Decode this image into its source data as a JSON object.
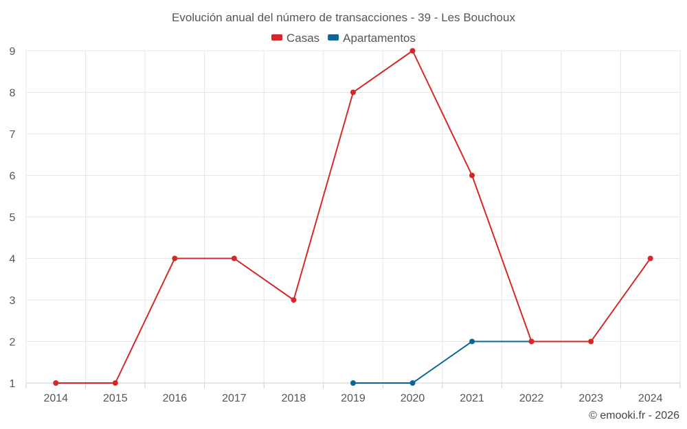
{
  "chart_data": {
    "type": "line",
    "title": "Evolución anual del número de transacciones - 39 - Les Bouchoux",
    "categories": [
      "2014",
      "2015",
      "2016",
      "2017",
      "2018",
      "2019",
      "2020",
      "2021",
      "2022",
      "2023",
      "2024"
    ],
    "yticks": [
      "1",
      "2",
      "3",
      "4",
      "5",
      "6",
      "7",
      "8",
      "9"
    ],
    "ylim": [
      1,
      9
    ],
    "grid": true,
    "legend_position": "top-center",
    "series": [
      {
        "name": "Casas",
        "color": "#d62728",
        "values": [
          1,
          1,
          4,
          4,
          3,
          8,
          9,
          6,
          2,
          2,
          4
        ]
      },
      {
        "name": "Apartamentos",
        "color": "#0d6596",
        "values": [
          null,
          null,
          null,
          null,
          null,
          1,
          1,
          2,
          2,
          null,
          null
        ]
      }
    ]
  },
  "credit": "© emooki.fr - 2026"
}
